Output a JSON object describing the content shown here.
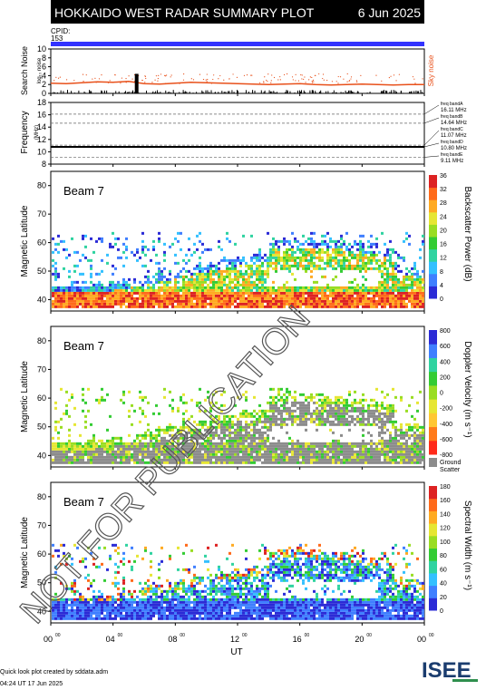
{
  "header": {
    "title": "HOKKAIDO WEST RADAR SUMMARY PLOT",
    "date": "6 Jun 2025",
    "cpid_label": "CPID:",
    "cpid_value": "153"
  },
  "footer": {
    "created_by": "Quick look plot created by sddata.adm",
    "timestamp": "04:24 UT 17 Jun 2025",
    "logo_text": "ISEE"
  },
  "watermark": "NOT FOR PUBLICATION",
  "colors": {
    "cpid_bar": "#3333ff",
    "sky_noise": "#e8501a",
    "ground_scatter": "#8c8c8c",
    "header_bg": "#000000"
  },
  "chart_data": [
    {
      "type": "line",
      "title": "",
      "ylabel": "Search Noise",
      "ylabel_sub": "log₁₀ noise",
      "right_label": "Sky noise",
      "ylim": [
        0,
        10
      ],
      "yticks": [
        0,
        2,
        4,
        6,
        8,
        10
      ],
      "xlim": [
        0,
        24
      ],
      "series": [
        {
          "name": "Sky noise",
          "x": [
            0,
            1,
            2,
            3,
            4,
            5,
            6,
            7,
            8,
            9,
            10,
            11,
            12,
            13,
            14,
            15,
            16,
            17,
            18,
            19,
            20,
            21,
            22,
            23,
            24
          ],
          "values": [
            2.3,
            2.2,
            2.4,
            2.6,
            2.5,
            2.7,
            2.2,
            2.1,
            2.3,
            2.5,
            2.4,
            2.3,
            2.2,
            2.1,
            2.0,
            2.1,
            2.2,
            2.0,
            1.9,
            2.0,
            2.1,
            2.0,
            1.9,
            2.0,
            2.0
          ]
        }
      ]
    },
    {
      "type": "line",
      "ylabel": "Frequency",
      "ylabel_sub": "(MHz)",
      "ylim": [
        8,
        18
      ],
      "yticks": [
        8,
        10,
        12,
        14,
        16,
        18
      ],
      "xlim": [
        0,
        24
      ],
      "freq_bands": [
        {
          "label": "freq bandA",
          "value": "16.11 MHz"
        },
        {
          "label": "freq bandB",
          "value": "14.64 MHz"
        },
        {
          "label": "freq bandC",
          "value": "11.07 MHz"
        },
        {
          "label": "freq bandD",
          "value": "10.80 MHz"
        },
        {
          "label": "freq bandE",
          "value": "9.11 MHz"
        }
      ],
      "series": [
        {
          "name": "freq bandD",
          "x": [
            0,
            24
          ],
          "values": [
            10.8,
            10.8
          ]
        }
      ]
    },
    {
      "type": "heatmap",
      "beam_label": "Beam 7",
      "ylabel": "Magnetic Latitude",
      "colorbar_label": "Backscatter Power (dB)",
      "colorbar_ticks": [
        0,
        4,
        8,
        12,
        16,
        20,
        24,
        28,
        32,
        36
      ],
      "ylim": [
        36,
        85
      ],
      "yticks": [
        40,
        50,
        60,
        70,
        80
      ],
      "xlim": [
        0,
        24
      ]
    },
    {
      "type": "heatmap",
      "beam_label": "Beam 7",
      "ylabel": "Magnetic Latitude",
      "colorbar_label": "Doppler Velocity (m s⁻¹)",
      "colorbar_ticks": [
        -800,
        -600,
        -400,
        -200,
        0,
        200,
        400,
        600,
        800
      ],
      "colorbar_extra": "Ground Scatter",
      "ylim": [
        36,
        85
      ],
      "yticks": [
        40,
        50,
        60,
        70,
        80
      ],
      "xlim": [
        0,
        24
      ]
    },
    {
      "type": "heatmap",
      "beam_label": "Beam 7",
      "ylabel": "Magnetic Latitude",
      "colorbar_label": "Spectral Width (m s⁻¹)",
      "colorbar_ticks": [
        0,
        20,
        40,
        60,
        80,
        100,
        120,
        140,
        160,
        180
      ],
      "ylim": [
        36,
        85
      ],
      "yticks": [
        40,
        50,
        60,
        70,
        80
      ],
      "xlim": [
        0,
        24
      ],
      "xlabel": "UT",
      "xticks": [
        "00",
        "04",
        "08",
        "12",
        "16",
        "20",
        "00"
      ]
    }
  ]
}
